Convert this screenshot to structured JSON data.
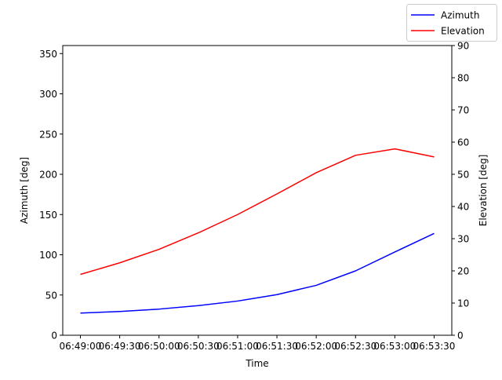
{
  "chart_data": {
    "type": "line",
    "title": "",
    "xlabel": "Time",
    "ylabel_left": "Azimuth [deg]",
    "ylabel_right": "Elevation [deg]",
    "x": [
      "06:49:00",
      "06:49:30",
      "06:50:00",
      "06:50:30",
      "06:51:00",
      "06:51:30",
      "06:52:00",
      "06:52:30",
      "06:53:00",
      "06:53:30"
    ],
    "ylim_left": [
      0,
      360
    ],
    "ylim_right": [
      0,
      90
    ],
    "yticks_left": [
      0,
      50,
      100,
      150,
      200,
      250,
      300,
      350
    ],
    "yticks_right": [
      0,
      10,
      20,
      30,
      40,
      50,
      60,
      70,
      80,
      90
    ],
    "grid": false,
    "legend_position": "top-right",
    "series": [
      {
        "name": "Azimuth",
        "axis": "left",
        "color": "#0000ff",
        "values": [
          27.5,
          29.5,
          32.5,
          36.8,
          42.5,
          50.5,
          62.0,
          80.0,
          103.5,
          126.5
        ]
      },
      {
        "name": "Elevation",
        "axis": "right",
        "color": "#ff0000",
        "values": [
          18.9,
          22.5,
          26.7,
          31.8,
          37.5,
          43.9,
          50.5,
          55.9,
          57.9,
          55.4
        ]
      }
    ]
  }
}
